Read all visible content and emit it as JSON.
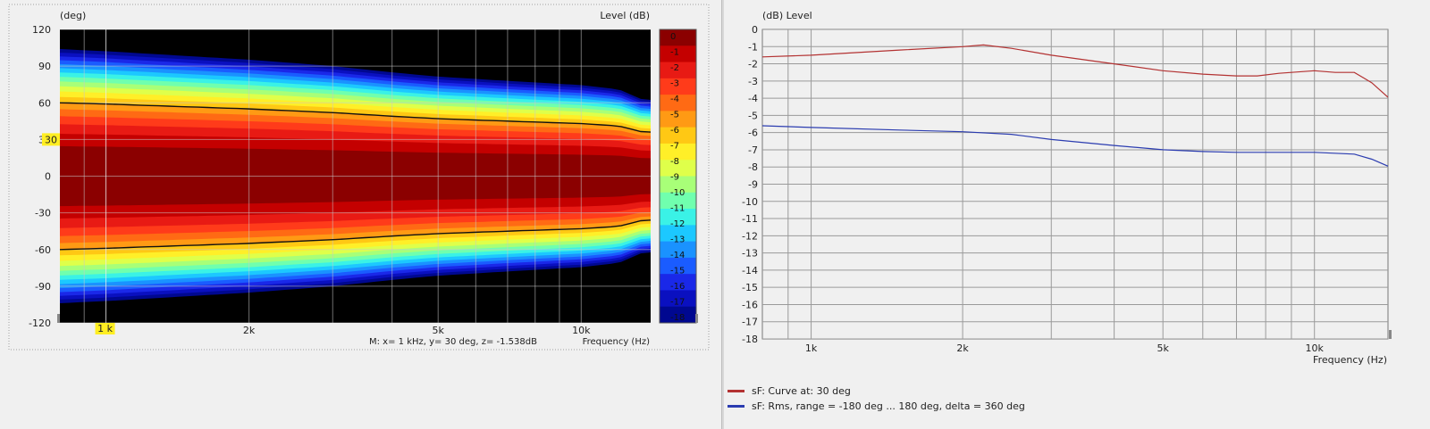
{
  "colors": {
    "curve_red": "#b33232",
    "rms_blue": "#2b3cb0",
    "scale": [
      "#8b0000",
      "#c40000",
      "#e81a14",
      "#ff3b1a",
      "#ff6a14",
      "#ff9a14",
      "#ffc814",
      "#ffef28",
      "#dfff4a",
      "#a8ff78",
      "#70ffae",
      "#3af2e6",
      "#1cc8ff",
      "#1a92ff",
      "#1a5cff",
      "#1a28e8",
      "#0a10c0",
      "#000890"
    ]
  },
  "chart_data": [
    {
      "type": "heatmap",
      "ylabel": "(deg)",
      "zlabel": "Level  (dB)",
      "xlabel": "Frequency  (Hz)",
      "xscale": "log",
      "xlim": [
        800,
        14000
      ],
      "ylim": [
        -120,
        120
      ],
      "zlim": [
        -18,
        0
      ],
      "y_ticks": [
        120,
        90,
        60,
        30,
        0,
        -30,
        -60,
        -90,
        -120
      ],
      "x_tick_labels": [
        {
          "value": 1000,
          "label": "1k"
        },
        {
          "value": 2000,
          "label": "2k"
        },
        {
          "value": 5000,
          "label": "5k"
        },
        {
          "value": 10000,
          "label": "10k"
        }
      ],
      "colorbar_ticks": [
        0,
        -1,
        -2,
        -3,
        -4,
        -5,
        -6,
        -7,
        -8,
        -9,
        -10,
        -11,
        -12,
        -13,
        -14,
        -15,
        -16,
        -17,
        -18
      ],
      "contour_half_width_deg": {
        "frequency": [
          800,
          1000,
          2000,
          3000,
          4000,
          5000,
          7000,
          10000,
          12000,
          13500
        ],
        "level_-6dB": [
          60,
          59,
          55,
          52,
          49,
          47,
          45,
          43,
          41,
          36
        ]
      },
      "cursor": {
        "x_label": "1 k",
        "y_label": "30"
      },
      "marker_readout": "M:  x= 1 kHz,  y= 30 deg, z= -1.538dB"
    },
    {
      "type": "line",
      "ylabel": "(dB)  Level",
      "xlabel": "Frequency  (Hz)",
      "xscale": "log",
      "xlim": [
        800,
        14000
      ],
      "ylim": [
        -18,
        0
      ],
      "y_ticks": [
        0,
        -1,
        -2,
        -3,
        -4,
        -5,
        -6,
        -7,
        -8,
        -9,
        -10,
        -11,
        -12,
        -13,
        -14,
        -15,
        -16,
        -17,
        -18
      ],
      "x_tick_labels": [
        {
          "value": 1000,
          "label": "1k"
        },
        {
          "value": 2000,
          "label": "2k"
        },
        {
          "value": 5000,
          "label": "5k"
        },
        {
          "value": 10000,
          "label": "10k"
        }
      ],
      "series": [
        {
          "name": "sF: Curve at: 30 deg",
          "color": "#b33232",
          "x": [
            800,
            1000,
            1500,
            2000,
            2200,
            2500,
            3000,
            4000,
            5000,
            6000,
            7000,
            7700,
            8500,
            10000,
            11000,
            12000,
            13000,
            14000
          ],
          "y": [
            -1.6,
            -1.5,
            -1.2,
            -1.0,
            -0.9,
            -1.1,
            -1.5,
            -2.0,
            -2.4,
            -2.6,
            -2.7,
            -2.7,
            -2.55,
            -2.4,
            -2.5,
            -2.5,
            -3.1,
            -3.95
          ]
        },
        {
          "name": "sF: Rms, range = -180 deg ... 180 deg, delta = 360 deg",
          "color": "#2b3cb0",
          "x": [
            800,
            1000,
            1500,
            2000,
            2500,
            3000,
            4000,
            5000,
            6000,
            7000,
            8000,
            10000,
            12000,
            13000,
            14000
          ],
          "y": [
            -5.6,
            -5.7,
            -5.85,
            -5.95,
            -6.1,
            -6.4,
            -6.75,
            -7.0,
            -7.1,
            -7.15,
            -7.15,
            -7.15,
            -7.25,
            -7.55,
            -7.95
          ]
        }
      ],
      "small_mark": "o"
    }
  ]
}
